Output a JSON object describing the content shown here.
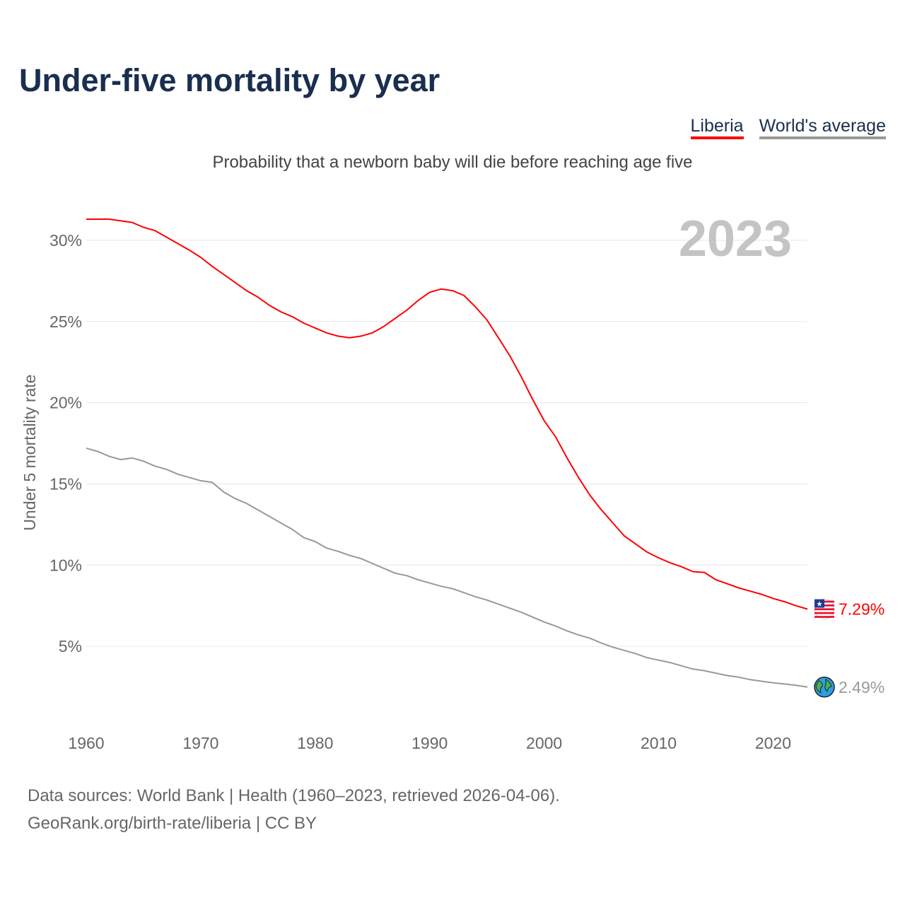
{
  "title": "Under-five mortality by year",
  "subtitle": "Probability that a newborn baby will die before reaching age five",
  "legend": [
    {
      "label": "Liberia",
      "color": "#ff0000"
    },
    {
      "label": "World's average",
      "color": "#999999"
    }
  ],
  "year_display": "2023",
  "source": {
    "line1": "Data sources: World Bank | Health (1960–2023, retrieved 2026-04-06).",
    "line2": "GeoRank.org/birth-rate/liberia | CC BY"
  },
  "chart_data": {
    "type": "line",
    "title": "Under-five mortality by year",
    "xlabel": "",
    "ylabel": "Under 5 mortality rate",
    "xlim": [
      1960,
      2023
    ],
    "ylim": [
      0,
      32.5
    ],
    "x_ticks": [
      1960,
      1970,
      1980,
      1990,
      2000,
      2010,
      2020
    ],
    "y_ticks": [
      5,
      10,
      15,
      20,
      25,
      30
    ],
    "y_tick_labels": [
      "5%",
      "10%",
      "15%",
      "20%",
      "25%",
      "30%"
    ],
    "grid": true,
    "legend_position": "top-right",
    "x": [
      1960,
      1961,
      1962,
      1963,
      1964,
      1965,
      1966,
      1967,
      1968,
      1969,
      1970,
      1971,
      1972,
      1973,
      1974,
      1975,
      1976,
      1977,
      1978,
      1979,
      1980,
      1981,
      1982,
      1983,
      1984,
      1985,
      1986,
      1987,
      1988,
      1989,
      1990,
      1991,
      1992,
      1993,
      1994,
      1995,
      1996,
      1997,
      1998,
      1999,
      2000,
      2001,
      2002,
      2003,
      2004,
      2005,
      2006,
      2007,
      2008,
      2009,
      2010,
      2011,
      2012,
      2013,
      2014,
      2015,
      2016,
      2017,
      2018,
      2019,
      2020,
      2021,
      2022,
      2023
    ],
    "series": [
      {
        "name": "Liberia",
        "color": "#ff0000",
        "end_label": "7.29%",
        "values": [
          31.3,
          31.3,
          31.3,
          31.2,
          31.1,
          30.8,
          30.6,
          30.2,
          29.8,
          29.4,
          28.95,
          28.4,
          27.9,
          27.4,
          26.9,
          26.5,
          26.0,
          25.6,
          25.3,
          24.9,
          24.6,
          24.3,
          24.1,
          24.0,
          24.1,
          24.3,
          24.7,
          25.2,
          25.7,
          26.3,
          26.8,
          27.0,
          26.9,
          26.6,
          25.9,
          25.1,
          24.0,
          22.9,
          21.6,
          20.2,
          18.9,
          17.9,
          16.6,
          15.4,
          14.3,
          13.4,
          12.6,
          11.8,
          11.3,
          10.8,
          10.45,
          10.15,
          9.9,
          9.6,
          9.55,
          9.1,
          8.85,
          8.6,
          8.4,
          8.2,
          7.95,
          7.75,
          7.5,
          7.29
        ]
      },
      {
        "name": "World's average",
        "color": "#999999",
        "end_label": "2.49%",
        "values": [
          17.2,
          17.0,
          16.7,
          16.5,
          16.6,
          16.4,
          16.1,
          15.9,
          15.6,
          15.4,
          15.2,
          15.1,
          14.5,
          14.1,
          13.8,
          13.4,
          13.0,
          12.6,
          12.2,
          11.7,
          11.45,
          11.05,
          10.85,
          10.6,
          10.4,
          10.1,
          9.8,
          9.5,
          9.35,
          9.1,
          8.9,
          8.7,
          8.55,
          8.3,
          8.05,
          7.85,
          7.6,
          7.35,
          7.1,
          6.8,
          6.5,
          6.25,
          5.95,
          5.7,
          5.5,
          5.2,
          4.95,
          4.75,
          4.55,
          4.3,
          4.15,
          4.0,
          3.8,
          3.6,
          3.5,
          3.35,
          3.2,
          3.1,
          2.95,
          2.85,
          2.75,
          2.68,
          2.6,
          2.49
        ]
      }
    ]
  }
}
